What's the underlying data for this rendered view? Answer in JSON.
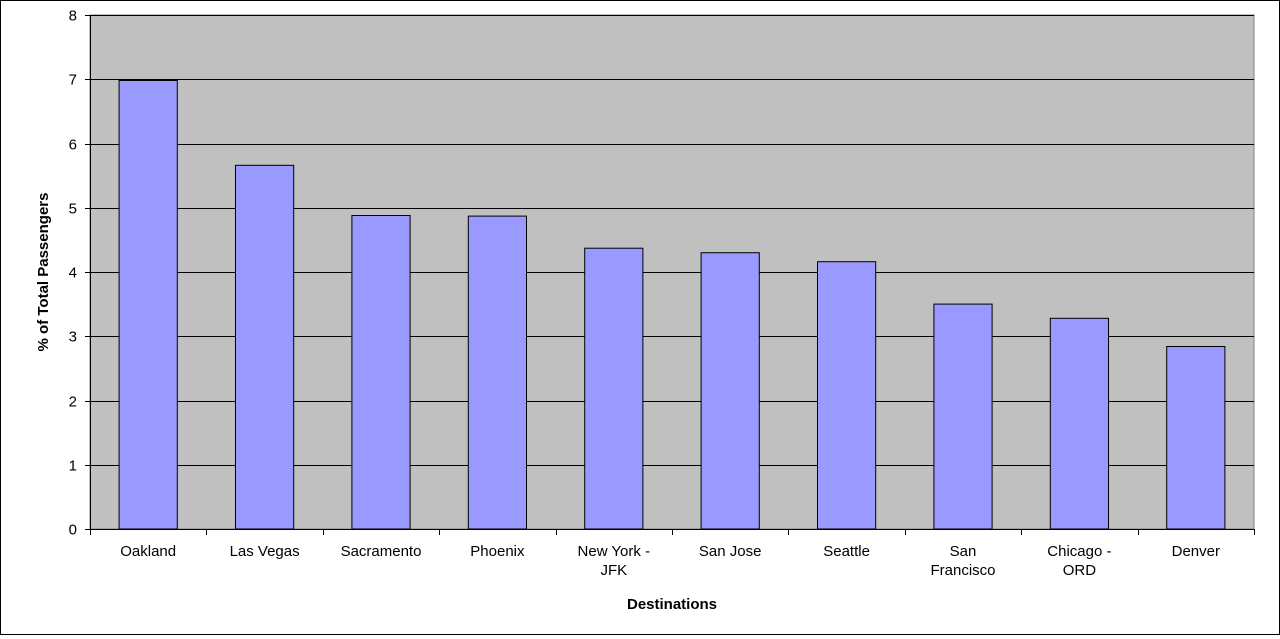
{
  "chart_data": {
    "type": "bar",
    "title": "",
    "xlabel": "Destinations",
    "ylabel": "% of Total Passengers",
    "categories": [
      [
        "Oakland"
      ],
      [
        "Las Vegas"
      ],
      [
        "Sacramento"
      ],
      [
        "Phoenix"
      ],
      [
        "New York -",
        "JFK"
      ],
      [
        "San Jose"
      ],
      [
        "Seattle"
      ],
      [
        "San",
        "Francisco"
      ],
      [
        "Chicago -",
        "ORD"
      ],
      [
        "Denver"
      ]
    ],
    "series": [
      {
        "values": [
          6.98,
          5.66,
          4.88,
          4.87,
          4.37,
          4.3,
          4.16,
          3.5,
          3.28,
          2.84
        ]
      }
    ],
    "ylim": [
      0,
      8
    ],
    "yticks": [
      0,
      1,
      2,
      3,
      4,
      5,
      6,
      7,
      8
    ],
    "grid": true,
    "legend": "none",
    "colors": {
      "bar_fill": "#9999FF",
      "bar_stroke": "#000000",
      "plot_background": "#C0C0C0",
      "gridline": "#000000"
    }
  }
}
